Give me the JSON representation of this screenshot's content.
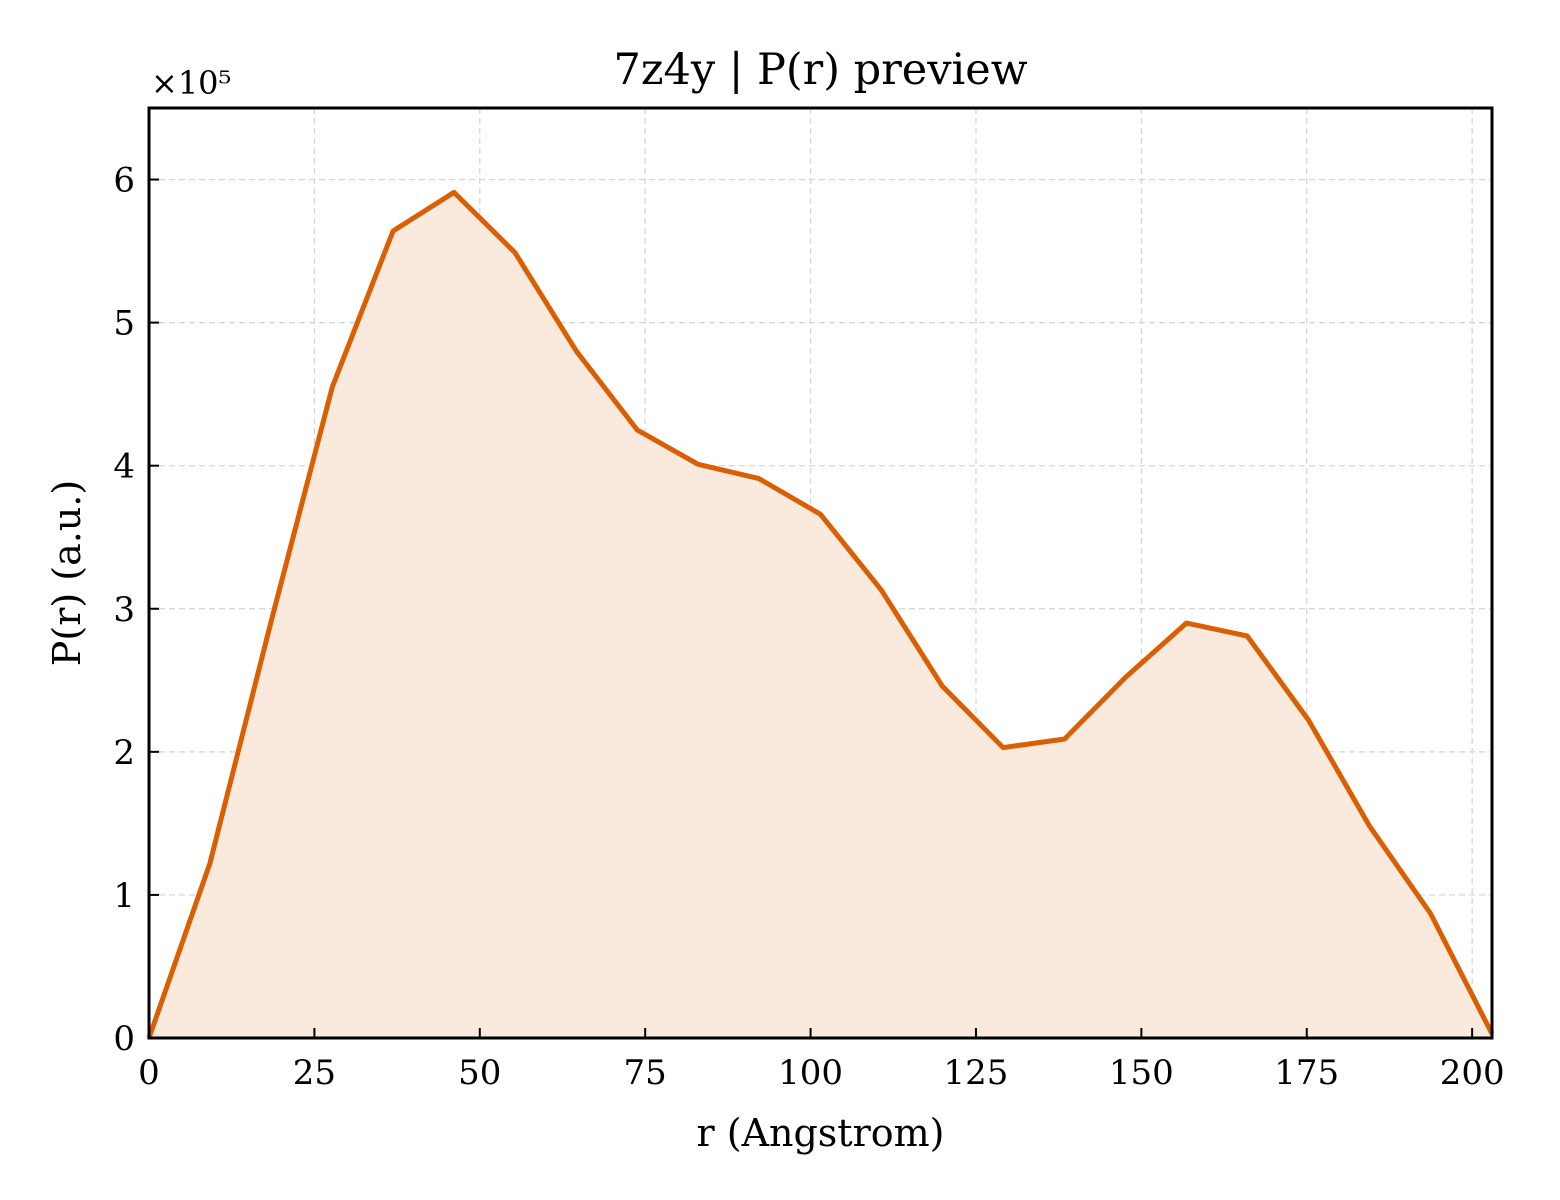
{
  "chart_data": {
    "type": "area",
    "title": "7z4y | P(r) preview",
    "xlabel": "r (Angstrom)",
    "ylabel": "P(r) (a.u.)",
    "y_multiplier_label": "×10⁵",
    "y_scale_factor": 100000,
    "xlim": [
      0,
      203
    ],
    "ylim": [
      0,
      650000
    ],
    "xticks": [
      0,
      25,
      50,
      75,
      100,
      125,
      150,
      175,
      200
    ],
    "yticks": [
      0,
      100000,
      200000,
      300000,
      400000,
      500000,
      600000
    ],
    "ytick_labels": [
      "0",
      "1",
      "2",
      "3",
      "4",
      "5",
      "6"
    ],
    "grid": true,
    "line_color": "#d95f02",
    "fill_color": "#fae9dd",
    "series": [
      {
        "x": [
          0,
          9.2,
          18.4,
          27.7,
          36.9,
          46.1,
          55.3,
          64.6,
          73.8,
          83.0,
          92.2,
          101.5,
          110.7,
          119.9,
          129.1,
          138.4,
          147.6,
          156.8,
          166.0,
          175.3,
          184.5,
          193.7,
          203.0
        ],
        "y": [
          0,
          122000,
          290000,
          455000,
          564000,
          591000,
          549000,
          480000,
          425000,
          401000,
          391000,
          366000,
          313000,
          246000,
          203000,
          209000,
          252000,
          290000,
          281000,
          222000,
          148000,
          87000,
          3000
        ]
      }
    ]
  }
}
